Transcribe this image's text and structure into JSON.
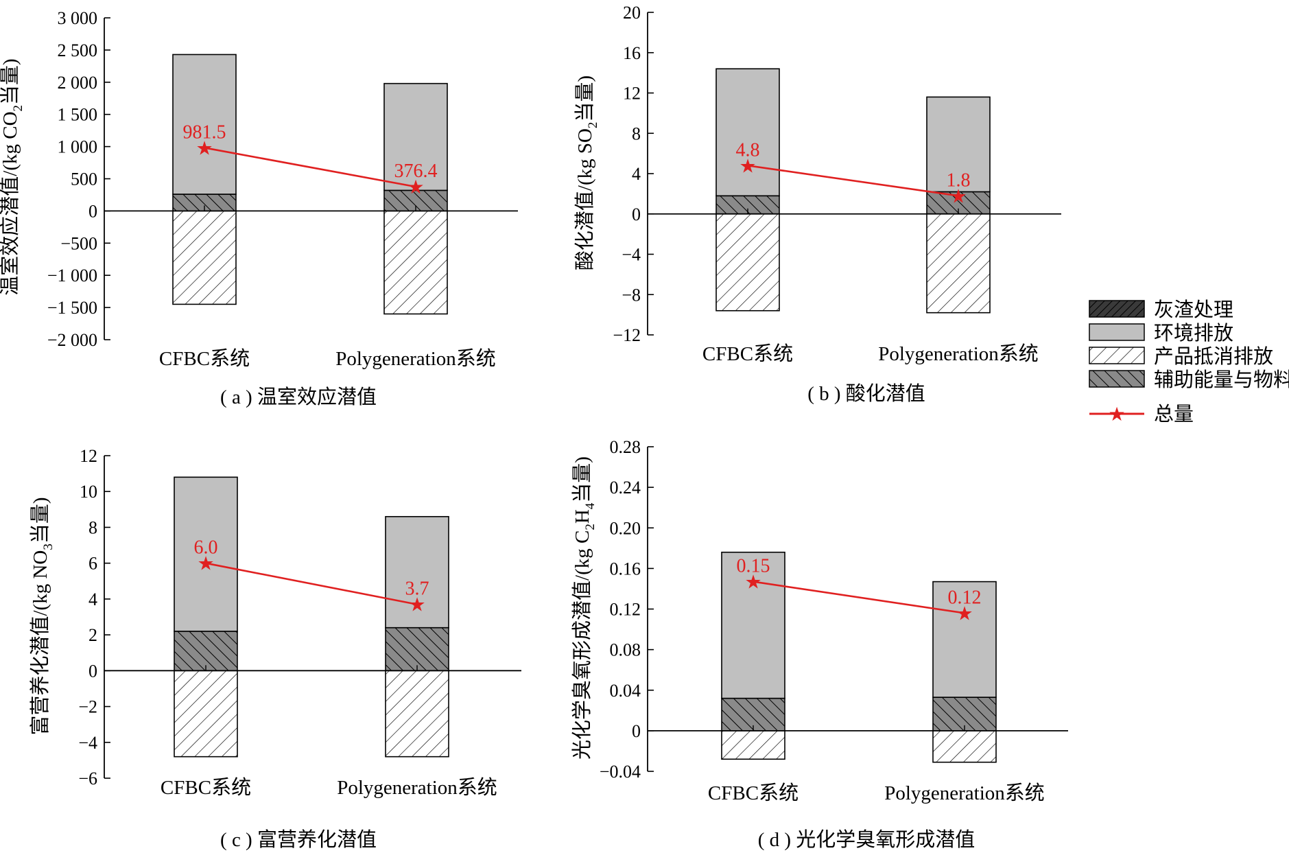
{
  "colors": {
    "ash": "#3a3a3a",
    "env": "#c0c0c0",
    "product": "#ffffff",
    "aux": "#8a8a8a",
    "total": "#e02020",
    "axis": "#000000"
  },
  "legend": {
    "items": [
      {
        "key": "ash",
        "label": "灰渣处理"
      },
      {
        "key": "env",
        "label": "环境排放"
      },
      {
        "key": "product",
        "label": "产品抵消排放"
      },
      {
        "key": "aux",
        "label": "辅助能量与物料"
      }
    ],
    "total_label": "总量"
  },
  "chart_data": [
    {
      "id": "a",
      "type": "bar",
      "stacked": true,
      "caption": "( a ) 温室效应潜值",
      "ylabel": {
        "pre": "温室效应潜值/(kg CO",
        "sub": "2",
        "post": "当量)"
      },
      "categories": [
        "CFBC系统",
        "Polygeneration系统"
      ],
      "ylim": [
        -2000,
        3000
      ],
      "yticks": [
        -2000,
        -1500,
        -1000,
        -500,
        0,
        500,
        1000,
        1500,
        2000,
        2500,
        3000
      ],
      "ytick_labels": [
        "−2 000",
        "−1 500",
        "−1 000",
        "−500",
        "0",
        "500",
        "1 000",
        "1 500",
        "2 000",
        "2 500",
        "3 000"
      ],
      "series": [
        {
          "name": "灰渣处理",
          "key": "ash",
          "values": [
            0,
            0
          ]
        },
        {
          "name": "辅助能量与物料",
          "key": "aux",
          "values": [
            260,
            320
          ]
        },
        {
          "name": "环境排放",
          "key": "env",
          "values": [
            2170,
            1660
          ]
        },
        {
          "name": "产品抵消排放",
          "key": "product",
          "values": [
            -1450,
            -1600
          ]
        }
      ],
      "total": {
        "name": "总量",
        "values": [
          981.5,
          376.4
        ],
        "labels": [
          "981.5",
          "376.4"
        ]
      }
    },
    {
      "id": "b",
      "type": "bar",
      "stacked": true,
      "caption": "( b ) 酸化潜值",
      "ylabel": {
        "pre": "酸化潜值/(kg SO",
        "sub": "2",
        "post": "当量)"
      },
      "categories": [
        "CFBC系统",
        "Polygeneration系统"
      ],
      "ylim": [
        -12,
        20
      ],
      "yticks": [
        -12,
        -8,
        -4,
        0,
        4,
        8,
        12,
        16,
        20
      ],
      "ytick_labels": [
        "−12",
        "−8",
        "−4",
        "0",
        "4",
        "8",
        "12",
        "16",
        "20"
      ],
      "series": [
        {
          "name": "灰渣处理",
          "key": "ash",
          "values": [
            0,
            0
          ]
        },
        {
          "name": "辅助能量与物料",
          "key": "aux",
          "values": [
            1.8,
            2.2
          ]
        },
        {
          "name": "环境排放",
          "key": "env",
          "values": [
            12.6,
            9.4
          ]
        },
        {
          "name": "产品抵消排放",
          "key": "product",
          "values": [
            -9.6,
            -9.8
          ]
        }
      ],
      "total": {
        "name": "总量",
        "values": [
          4.8,
          1.8
        ],
        "labels": [
          "4.8",
          "1.8"
        ]
      }
    },
    {
      "id": "c",
      "type": "bar",
      "stacked": true,
      "caption": "( c ) 富营养化潜值",
      "ylabel": {
        "pre": "富营养化潜值/(kg  NO",
        "sub": "3",
        "post": "当量)"
      },
      "categories": [
        "CFBC系统",
        "Polygeneration系统"
      ],
      "ylim": [
        -6,
        12
      ],
      "yticks": [
        -6,
        -4,
        -2,
        0,
        2,
        4,
        6,
        8,
        10,
        12
      ],
      "ytick_labels": [
        "−6",
        "−4",
        "−2",
        "0",
        "2",
        "4",
        "6",
        "8",
        "10",
        "12"
      ],
      "series": [
        {
          "name": "灰渣处理",
          "key": "ash",
          "values": [
            0,
            0
          ]
        },
        {
          "name": "辅助能量与物料",
          "key": "aux",
          "values": [
            2.2,
            2.4
          ]
        },
        {
          "name": "环境排放",
          "key": "env",
          "values": [
            8.6,
            6.2
          ]
        },
        {
          "name": "产品抵消排放",
          "key": "product",
          "values": [
            -4.8,
            -4.8
          ]
        }
      ],
      "total": {
        "name": "总量",
        "values": [
          6.0,
          3.7
        ],
        "labels": [
          "6.0",
          "3.7"
        ]
      }
    },
    {
      "id": "d",
      "type": "bar",
      "stacked": true,
      "caption": "( d ) 光化学臭氧形成潜值",
      "ylabel": {
        "pre": "光化学臭氧形成潜值/(kg C",
        "sub": "2",
        "mid": "H",
        "sub2": "4",
        "post": "当量)"
      },
      "categories": [
        "CFBC系统",
        "Polygeneration系统"
      ],
      "ylim": [
        -0.04,
        0.28
      ],
      "yticks": [
        -0.04,
        0,
        0.04,
        0.08,
        0.12,
        0.16,
        0.2,
        0.24,
        0.28
      ],
      "ytick_labels": [
        "−0.04",
        "0",
        "0.04",
        "0.08",
        "0.12",
        "0.16",
        "0.20",
        "0.24",
        "0.28"
      ],
      "series": [
        {
          "name": "灰渣处理",
          "key": "ash",
          "values": [
            0,
            0
          ]
        },
        {
          "name": "辅助能量与物料",
          "key": "aux",
          "values": [
            0.032,
            0.033
          ]
        },
        {
          "name": "环境排放",
          "key": "env",
          "values": [
            0.144,
            0.114
          ]
        },
        {
          "name": "产品抵消排放",
          "key": "product",
          "values": [
            -0.028,
            -0.031
          ]
        }
      ],
      "total": {
        "name": "总量",
        "values": [
          0.147,
          0.116
        ],
        "labels": [
          "0.15",
          "0.12"
        ]
      }
    }
  ]
}
